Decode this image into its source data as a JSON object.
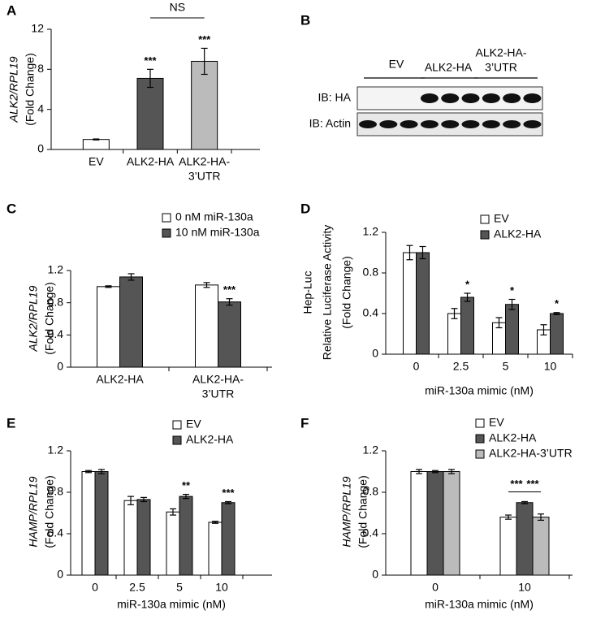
{
  "chart_data": [
    {
      "type": "bar",
      "panel_label": "A",
      "ylabel": [
        "ALK2/RPL19",
        "(Fold Change)"
      ],
      "ylabel_italic_first": true,
      "categories": [
        "EV",
        "ALK2-HA",
        [
          "ALK2-HA-",
          "3’UTR"
        ]
      ],
      "values": [
        1,
        7.1,
        8.8
      ],
      "errors": [
        0.05,
        0.9,
        1.3
      ],
      "colors": [
        "#ffffff",
        "#555555",
        "#bbbbbb"
      ],
      "significance": [
        null,
        "***",
        "***"
      ],
      "brackets": [
        {
          "text": "NS",
          "between": [
            1,
            2
          ]
        }
      ],
      "ylim": [
        0,
        12
      ],
      "yticks": [
        0,
        4,
        8,
        12
      ]
    },
    {
      "type": "bar",
      "panel_label": "C",
      "ylabel": [
        "ALK2/RPL19",
        "(Fold Change)"
      ],
      "ylabel_italic_first": true,
      "categories": [
        "ALK2-HA",
        [
          "ALK2-HA-",
          "3’UTR"
        ]
      ],
      "series": [
        {
          "name": "0 nM  miR-130a",
          "color": "#ffffff",
          "values": [
            1.0,
            1.02
          ],
          "errors": [
            0.01,
            0.03
          ],
          "significance": [
            null,
            null
          ]
        },
        {
          "name": "10 nM  miR-130a",
          "color": "#555555",
          "values": [
            1.12,
            0.81
          ],
          "errors": [
            0.04,
            0.04
          ],
          "significance": [
            null,
            "***"
          ]
        }
      ],
      "ylim": [
        0,
        1.2
      ],
      "yticks": [
        0,
        0.4,
        0.8,
        1.2
      ]
    },
    {
      "type": "bar",
      "panel_label": "D",
      "ylabel": [
        "Hep-Luc",
        "Relative Luciferase Activity",
        "(Fold Change)"
      ],
      "ylabel_italic_first": false,
      "xlabel": "miR-130a mimic (nM)",
      "categories": [
        "0",
        "2.5",
        "5",
        "10"
      ],
      "series": [
        {
          "name": "EV",
          "color": "#ffffff",
          "values": [
            1.0,
            0.4,
            0.31,
            0.24
          ],
          "errors": [
            0.07,
            0.05,
            0.05,
            0.05
          ],
          "significance": [
            null,
            null,
            null,
            null
          ]
        },
        {
          "name": "ALK2-HA",
          "color": "#555555",
          "values": [
            1.0,
            0.56,
            0.49,
            0.4
          ],
          "errors": [
            0.06,
            0.04,
            0.05,
            0.01
          ],
          "significance": [
            null,
            "*",
            "*",
            "*"
          ]
        }
      ],
      "ylim": [
        0,
        1.2
      ],
      "yticks": [
        0,
        0.4,
        0.8,
        1.2
      ]
    },
    {
      "type": "bar",
      "panel_label": "E",
      "ylabel": [
        "HAMP/RPL19",
        "(Fold Change)"
      ],
      "ylabel_italic_first": true,
      "xlabel": "miR-130a mimic (nM)",
      "categories": [
        "0",
        "2.5",
        "5",
        "10"
      ],
      "series": [
        {
          "name": "EV",
          "color": "#ffffff",
          "values": [
            1.0,
            0.72,
            0.61,
            0.51
          ],
          "errors": [
            0.01,
            0.04,
            0.03,
            0.01
          ],
          "significance": [
            null,
            null,
            null,
            null
          ]
        },
        {
          "name": "ALK2-HA",
          "color": "#555555",
          "values": [
            1.0,
            0.73,
            0.76,
            0.7
          ],
          "errors": [
            0.02,
            0.02,
            0.02,
            0.01
          ],
          "significance": [
            null,
            null,
            "**",
            "***"
          ]
        }
      ],
      "ylim": [
        0,
        1.2
      ],
      "yticks": [
        0,
        0.4,
        0.8,
        1.2
      ]
    },
    {
      "type": "bar",
      "panel_label": "F",
      "ylabel": [
        "HAMP/RPL19",
        "(Fold Change)"
      ],
      "ylabel_italic_first": true,
      "xlabel": "miR-130a mimic (nM)",
      "categories": [
        "0",
        "10"
      ],
      "series": [
        {
          "name": "EV",
          "color": "#ffffff",
          "values": [
            1.0,
            0.56
          ],
          "errors": [
            0.02,
            0.02
          ]
        },
        {
          "name": "ALK2-HA",
          "color": "#555555",
          "values": [
            1.0,
            0.7
          ],
          "errors": [
            0.01,
            0.01
          ]
        },
        {
          "name": "ALK2-HA-3’UTR",
          "color": "#bbbbbb",
          "values": [
            1.0,
            0.56
          ],
          "errors": [
            0.02,
            0.03
          ]
        }
      ],
      "group_brackets": [
        {
          "text": "***",
          "category": 1,
          "between": [
            0,
            1
          ]
        },
        {
          "text": "***",
          "category": 1,
          "between": [
            1,
            2
          ]
        }
      ],
      "ylim": [
        0,
        1.2
      ],
      "yticks": [
        0,
        0.4,
        0.8,
        1.2
      ]
    }
  ],
  "blot": {
    "panel_label": "B",
    "lanes": [
      "EV",
      "ALK2-HA",
      [
        "ALK2-HA-",
        "3’UTR"
      ]
    ],
    "rows": [
      "IB: HA",
      "IB: Actin"
    ]
  }
}
